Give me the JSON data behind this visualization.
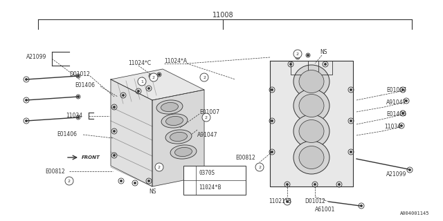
{
  "title": "11008",
  "bg_color": "#ffffff",
  "lc": "#4a4a4a",
  "footer_label": "A004001145",
  "legend_items": [
    {
      "num": "1",
      "label": "0370S"
    },
    {
      "num": "2",
      "label": "11024*B"
    }
  ],
  "figsize": [
    6.4,
    3.2
  ],
  "dpi": 100
}
